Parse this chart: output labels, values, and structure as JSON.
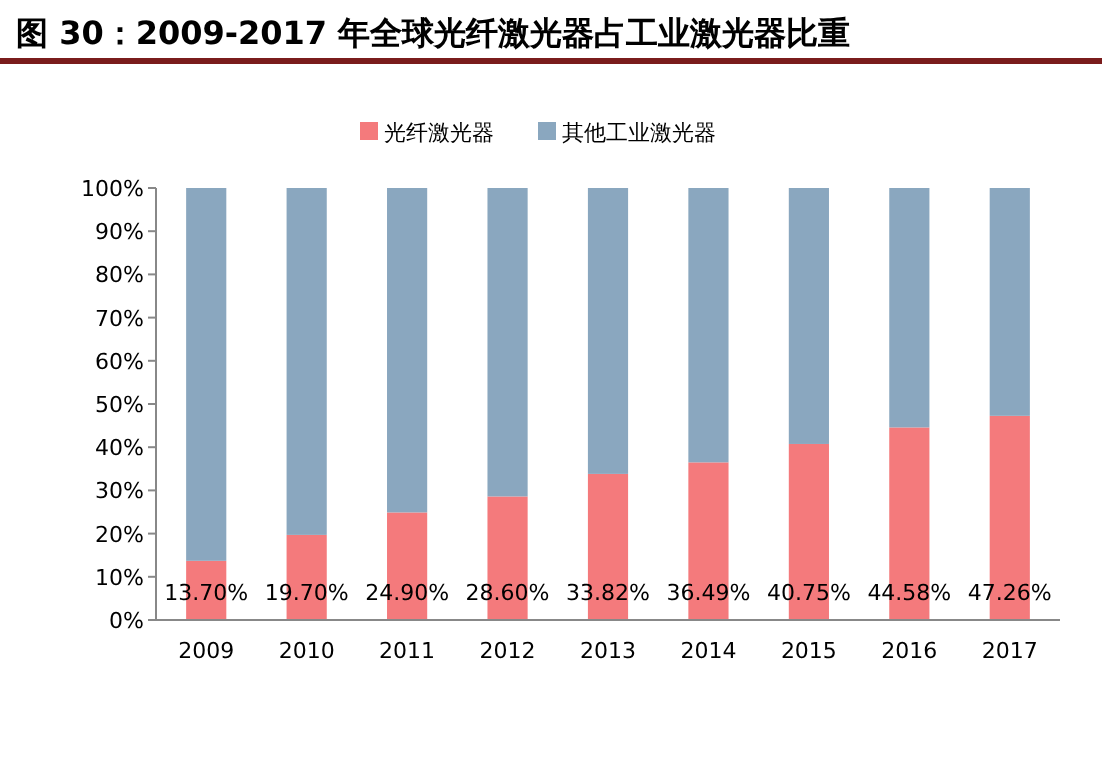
{
  "chart_data": {
    "type": "bar",
    "stacked": true,
    "title": "图 30：2009-2017 年全球光纤激光器占工业激光器比重",
    "legend": "top",
    "categories": [
      "2009",
      "2010",
      "2011",
      "2012",
      "2013",
      "2014",
      "2015",
      "2016",
      "2017"
    ],
    "series": [
      {
        "name": "光纤激光器",
        "color": "#f47a7c",
        "values": [
          13.7,
          19.7,
          24.9,
          28.6,
          33.82,
          36.49,
          40.75,
          44.58,
          47.26
        ],
        "value_labels": [
          "13.70%",
          "19.70%",
          "24.90%",
          "28.60%",
          "33.82%",
          "36.49%",
          "40.75%",
          "44.58%",
          "47.26%"
        ]
      },
      {
        "name": "其他工业激光器",
        "color": "#8aa7bf",
        "values": [
          86.3,
          80.3,
          75.1,
          71.4,
          66.18,
          63.51,
          59.25,
          55.42,
          52.74
        ]
      }
    ],
    "ylim": [
      0,
      100
    ],
    "yticks": [
      {
        "value": 0,
        "label": "0%"
      },
      {
        "value": 10,
        "label": "10%"
      },
      {
        "value": 20,
        "label": "20%"
      },
      {
        "value": 30,
        "label": "30%"
      },
      {
        "value": 40,
        "label": "40%"
      },
      {
        "value": 50,
        "label": "50%"
      },
      {
        "value": 60,
        "label": "60%"
      },
      {
        "value": 70,
        "label": "70%"
      },
      {
        "value": 80,
        "label": "80%"
      },
      {
        "value": 90,
        "label": "90%"
      },
      {
        "value": 100,
        "label": "100%"
      }
    ]
  }
}
